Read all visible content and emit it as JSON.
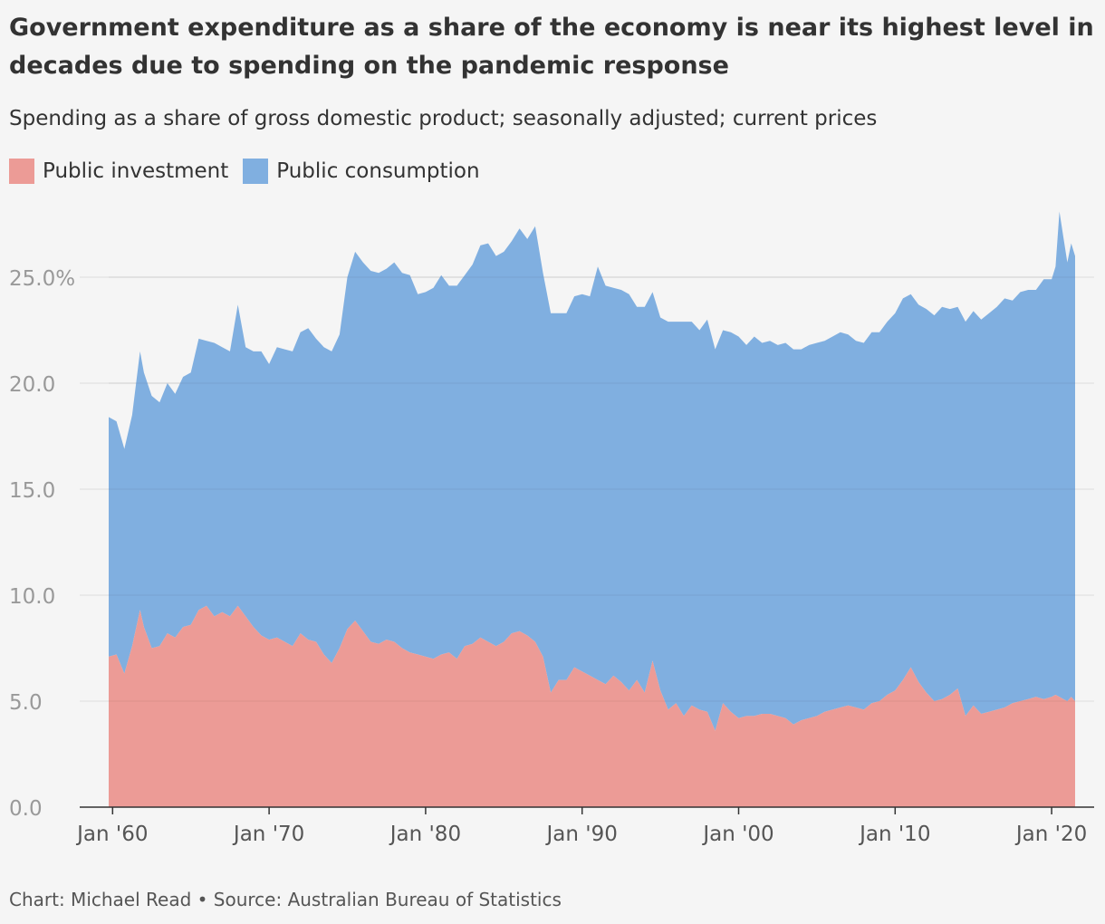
{
  "title": "Government expenditure as a share of the economy is near its highest level in decades due to spending on the pandemic response",
  "subtitle": "Spending as a share of gross domestic product; seasonally adjusted; current prices",
  "footer": "Chart: Michael Read • Source: Australian Bureau of Statistics",
  "colors": {
    "investment": "#ec9b96",
    "consumption": "#80afe0",
    "grid": "#dddddd",
    "axis": "#333333",
    "tick_text": "#999999",
    "background": "#f5f5f5"
  },
  "chart_data": {
    "type": "area",
    "stacked": true,
    "title": "Government expenditure as a share of the economy is near its highest level in decades due to spending on the pandemic response",
    "subtitle": "Spending as a share of gross domestic product; seasonally adjusted; current prices",
    "xlabel": "",
    "ylabel": "",
    "legend_position": "top-left",
    "grid": true,
    "xlim": [
      1959.5,
      2021.8
    ],
    "ylim": [
      0,
      29
    ],
    "x_ticks": [
      1960,
      1970,
      1980,
      1990,
      2000,
      2010,
      2020
    ],
    "x_tick_labels": [
      "Jan '60",
      "Jan '70",
      "Jan '80",
      "Jan '90",
      "Jan '00",
      "Jan '10",
      "Jan '20"
    ],
    "y_ticks": [
      0,
      5,
      10,
      15,
      20,
      25
    ],
    "y_tick_labels": [
      "0.0",
      "5.0",
      "10.0",
      "15.0",
      "20.0",
      "25.0%"
    ],
    "x": [
      1959.75,
      1960.25,
      1960.75,
      1961.25,
      1961.75,
      1962.0,
      1962.5,
      1963.0,
      1963.5,
      1964.0,
      1964.5,
      1965.0,
      1965.5,
      1966.0,
      1966.5,
      1967.0,
      1967.5,
      1968.0,
      1968.5,
      1969.0,
      1969.5,
      1970.0,
      1970.5,
      1971.0,
      1971.5,
      1972.0,
      1972.5,
      1973.0,
      1973.5,
      1974.0,
      1974.5,
      1975.0,
      1975.5,
      1976.0,
      1976.5,
      1977.0,
      1977.5,
      1978.0,
      1978.5,
      1979.0,
      1979.5,
      1980.0,
      1980.5,
      1981.0,
      1981.5,
      1982.0,
      1982.5,
      1983.0,
      1983.5,
      1984.0,
      1984.5,
      1985.0,
      1985.5,
      1986.0,
      1986.5,
      1987.0,
      1987.5,
      1988.0,
      1988.5,
      1989.0,
      1989.5,
      1990.0,
      1990.5,
      1991.0,
      1991.5,
      1992.0,
      1992.5,
      1993.0,
      1993.5,
      1994.0,
      1994.5,
      1995.0,
      1995.5,
      1996.0,
      1996.5,
      1997.0,
      1997.5,
      1998.0,
      1998.5,
      1999.0,
      1999.5,
      2000.0,
      2000.5,
      2001.0,
      2001.5,
      2002.0,
      2002.5,
      2003.0,
      2003.5,
      2004.0,
      2004.5,
      2005.0,
      2005.5,
      2006.0,
      2006.5,
      2007.0,
      2007.5,
      2008.0,
      2008.5,
      2009.0,
      2009.5,
      2010.0,
      2010.5,
      2011.0,
      2011.5,
      2012.0,
      2012.5,
      2013.0,
      2013.5,
      2014.0,
      2014.5,
      2015.0,
      2015.5,
      2016.0,
      2016.5,
      2017.0,
      2017.5,
      2018.0,
      2018.5,
      2019.0,
      2019.5,
      2020.0,
      2020.25,
      2020.5,
      2020.75,
      2021.0,
      2021.25,
      2021.5
    ],
    "series": [
      {
        "name": "Public investment",
        "color": "#ec9b96",
        "values": [
          7.1,
          7.2,
          6.3,
          7.6,
          9.3,
          8.5,
          7.5,
          7.6,
          8.2,
          8.0,
          8.5,
          8.6,
          9.3,
          9.5,
          9.0,
          9.2,
          9.0,
          9.5,
          9.0,
          8.5,
          8.1,
          7.9,
          8.0,
          7.8,
          7.6,
          8.2,
          7.9,
          7.8,
          7.2,
          6.8,
          7.5,
          8.4,
          8.8,
          8.3,
          7.8,
          7.7,
          7.9,
          7.8,
          7.5,
          7.3,
          7.2,
          7.1,
          7.0,
          7.2,
          7.3,
          7.0,
          7.6,
          7.7,
          8.0,
          7.8,
          7.6,
          7.8,
          8.2,
          8.3,
          8.1,
          7.8,
          7.1,
          5.4,
          6.0,
          6.0,
          6.6,
          6.4,
          6.2,
          6.0,
          5.8,
          6.2,
          5.9,
          5.5,
          6.0,
          5.4,
          6.9,
          5.5,
          4.6,
          4.9,
          4.3,
          4.8,
          4.6,
          4.5,
          3.6,
          4.9,
          4.5,
          4.2,
          4.3,
          4.3,
          4.4,
          4.4,
          4.3,
          4.2,
          3.9,
          4.1,
          4.2,
          4.3,
          4.5,
          4.6,
          4.7,
          4.8,
          4.7,
          4.6,
          4.9,
          5.0,
          5.3,
          5.5,
          6.0,
          6.6,
          5.9,
          5.4,
          5.0,
          5.1,
          5.3,
          5.6,
          4.3,
          4.8,
          4.4,
          4.5,
          4.6,
          4.7,
          4.9,
          5.0,
          5.1,
          5.2,
          5.1,
          5.2,
          5.3,
          5.2,
          5.1,
          5.0,
          5.2,
          5.0
        ]
      },
      {
        "name": "Public consumption",
        "color": "#80afe0",
        "values": [
          11.3,
          11.0,
          10.6,
          10.9,
          12.2,
          12.0,
          11.9,
          11.5,
          11.8,
          11.5,
          11.8,
          11.9,
          12.8,
          12.5,
          12.9,
          12.5,
          12.5,
          14.2,
          12.7,
          13.0,
          13.4,
          13.0,
          13.7,
          13.8,
          13.9,
          14.2,
          14.7,
          14.3,
          14.5,
          14.7,
          14.8,
          16.6,
          17.4,
          17.4,
          17.5,
          17.5,
          17.5,
          17.9,
          17.7,
          17.8,
          17.0,
          17.2,
          17.5,
          17.9,
          17.3,
          17.6,
          17.5,
          17.9,
          18.5,
          18.8,
          18.4,
          18.4,
          18.5,
          19.0,
          18.7,
          19.6,
          18.1,
          17.9,
          17.3,
          17.3,
          17.5,
          17.8,
          17.9,
          19.5,
          18.8,
          18.3,
          18.5,
          18.7,
          17.6,
          18.2,
          17.4,
          17.6,
          18.3,
          18.0,
          18.6,
          18.1,
          17.9,
          18.5,
          18.0,
          17.6,
          17.9,
          18.0,
          17.5,
          17.9,
          17.5,
          17.6,
          17.5,
          17.7,
          17.7,
          17.5,
          17.6,
          17.6,
          17.5,
          17.6,
          17.7,
          17.5,
          17.3,
          17.3,
          17.5,
          17.4,
          17.6,
          17.8,
          18.0,
          17.6,
          17.8,
          18.1,
          18.2,
          18.5,
          18.2,
          18.0,
          18.6,
          18.6,
          18.6,
          18.8,
          19.0,
          19.3,
          19.0,
          19.3,
          19.3,
          19.2,
          19.8,
          19.7,
          20.2,
          22.9,
          21.8,
          20.7,
          21.4,
          21.0
        ]
      }
    ]
  }
}
